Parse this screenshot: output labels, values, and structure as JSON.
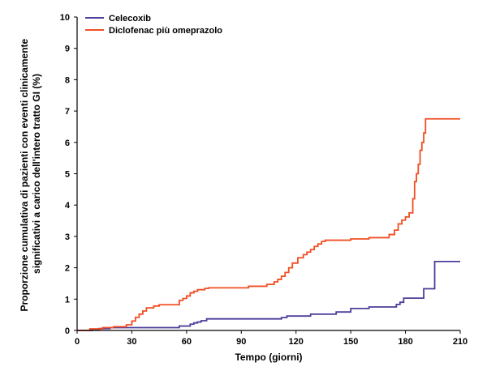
{
  "chart_data": {
    "type": "line",
    "step": true,
    "xlabel": "Tempo (giorni)",
    "ylabel_lines": [
      "Proporzione cumulativa di pazienti con eventi clinicamente",
      "significativi a carico dell'intero tratto GI (%)"
    ],
    "xlim": [
      0,
      210
    ],
    "ylim": [
      0,
      10
    ],
    "xticks": [
      "0",
      "30",
      "60",
      "90",
      "120",
      "150",
      "180",
      "210"
    ],
    "yticks": [
      "0",
      "1",
      "2",
      "3",
      "4",
      "5",
      "6",
      "7",
      "8",
      "9",
      "10"
    ],
    "legend_position": "top-left",
    "series": [
      {
        "name": "Celecoxib",
        "color": "#4b3f9a",
        "x": [
          0,
          8,
          12,
          18,
          56,
          62,
          64,
          66,
          68,
          71,
          112,
          115,
          128,
          142,
          150,
          160,
          175,
          177,
          179,
          190,
          196,
          210
        ],
        "y": [
          0,
          0.03,
          0.06,
          0.09,
          0.14,
          0.2,
          0.24,
          0.27,
          0.31,
          0.37,
          0.41,
          0.46,
          0.52,
          0.59,
          0.7,
          0.75,
          0.83,
          0.9,
          1.03,
          1.33,
          2.2,
          2.2
        ]
      },
      {
        "name": "Diclofenac più omeprazolo",
        "color": "#f04e23",
        "x": [
          0,
          7,
          14,
          20,
          27,
          30,
          32,
          34,
          36,
          38,
          42,
          45,
          56,
          58,
          60,
          62,
          64,
          66,
          70,
          72,
          94,
          104,
          108,
          110,
          112,
          114,
          116,
          118,
          121,
          124,
          126,
          128,
          130,
          132,
          134,
          136,
          150,
          160,
          171,
          174,
          176,
          178,
          180,
          182,
          184,
          185,
          186,
          187,
          188,
          189,
          190,
          191,
          210
        ],
        "y": [
          0,
          0.05,
          0.09,
          0.12,
          0.18,
          0.3,
          0.42,
          0.52,
          0.62,
          0.72,
          0.78,
          0.82,
          0.96,
          1.02,
          1.1,
          1.2,
          1.25,
          1.3,
          1.34,
          1.36,
          1.41,
          1.47,
          1.55,
          1.63,
          1.73,
          1.85,
          2.0,
          2.15,
          2.32,
          2.42,
          2.5,
          2.58,
          2.68,
          2.76,
          2.84,
          2.88,
          2.92,
          2.96,
          3.06,
          3.2,
          3.4,
          3.52,
          3.62,
          3.75,
          4.2,
          4.75,
          5.0,
          5.3,
          5.75,
          6.0,
          6.3,
          6.75,
          6.75
        ]
      }
    ]
  }
}
